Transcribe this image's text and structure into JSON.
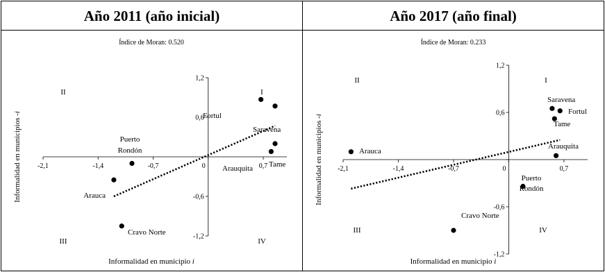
{
  "chart_data": [
    {
      "type": "scatter",
      "title": "Año 2011 (año inicial)",
      "subtitle": "Índice de Moran: 0.520",
      "xlabel": "Informalidad en municipio",
      "xlabel_italic": "i",
      "ylabel": "Informalidad en municipios",
      "ylabel_italic": "-i",
      "xlim": [
        -2.1,
        1.0
      ],
      "ylim": [
        -1.2,
        1.2
      ],
      "x_ticks": [
        "-2,1",
        "-1,4",
        "-0,7",
        "0",
        "0,7"
      ],
      "x_tick_values": [
        -2.1,
        -1.4,
        -0.7,
        0,
        0.7
      ],
      "y_ticks": [
        "1,2",
        "0,6",
        "0",
        "-0,6",
        "-1,2"
      ],
      "y_tick_values": [
        1.2,
        0.6,
        0,
        -0.6,
        -1.2
      ],
      "quadrants": [
        "I",
        "II",
        "III",
        "IV"
      ],
      "points": [
        {
          "label": "Fortul",
          "x": 0.67,
          "y": 0.87
        },
        {
          "label": "Saravena",
          "x": 0.85,
          "y": 0.77
        },
        {
          "label": "Tame",
          "x": 0.85,
          "y": 0.2
        },
        {
          "label": "Arauquita",
          "x": 0.8,
          "y": 0.08
        },
        {
          "label": "Puerto Rondón",
          "x": -0.97,
          "y": -0.1
        },
        {
          "label": "Arauca",
          "x": -1.2,
          "y": -0.35
        },
        {
          "label": "Cravo Norte",
          "x": -1.1,
          "y": -1.05
        }
      ],
      "trendline": {
        "x": [
          -1.2,
          0.85
        ],
        "y": [
          -0.6,
          0.47
        ],
        "style": "dotted"
      }
    },
    {
      "type": "scatter",
      "title": "Año 2017 (año final)",
      "subtitle": "Índice de Moran: 0.233",
      "xlabel": "Informalidad en municipio",
      "xlabel_italic": "i",
      "ylabel": "Informalidad en municipios",
      "ylabel_italic": "-i",
      "xlim": [
        -2.1,
        1.0
      ],
      "ylim": [
        -1.2,
        1.2
      ],
      "x_ticks": [
        "-2,1",
        "-1,4",
        "-0,7",
        "0",
        "0,7"
      ],
      "x_tick_values": [
        -2.1,
        -1.4,
        -0.7,
        0.0,
        0.7
      ],
      "y_ticks": [
        "1,2",
        "0,6",
        "0",
        "-0,6",
        "-1,2"
      ],
      "y_tick_values": [
        1.2,
        0.6,
        0,
        -0.6,
        -1.2
      ],
      "quadrants": [
        "I",
        "II",
        "III",
        "IV"
      ],
      "points": [
        {
          "label": "Saravena",
          "x": 0.55,
          "y": 0.65
        },
        {
          "label": "Fortul",
          "x": 0.65,
          "y": 0.62
        },
        {
          "label": "Tame",
          "x": 0.58,
          "y": 0.52
        },
        {
          "label": "Arauquita",
          "x": 0.6,
          "y": 0.05
        },
        {
          "label": "Arauca",
          "x": -2.0,
          "y": 0.1
        },
        {
          "label": "Puerto Rondón",
          "x": 0.18,
          "y": -0.34
        },
        {
          "label": "Cravo Norte",
          "x": -0.7,
          "y": -0.9
        }
      ],
      "trendline": {
        "x": [
          -2.0,
          0.65
        ],
        "y": [
          -0.37,
          0.25
        ],
        "style": "dotted"
      }
    }
  ]
}
